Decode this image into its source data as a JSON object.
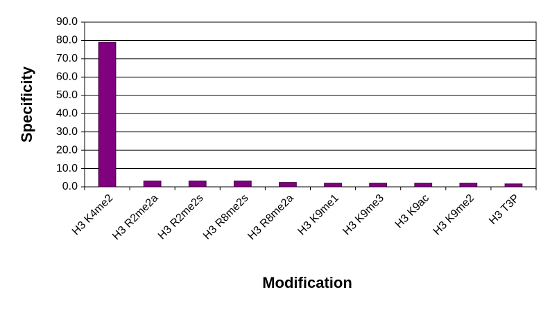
{
  "chart_data": {
    "type": "bar",
    "x_label": "Modification",
    "y_label": "Specificity",
    "categories": [
      "H3 K4me2",
      "H3 R2me2a",
      "H3 R2me2s",
      "H3 R8me2s",
      "H3 R8me2a",
      "H3 K9me1",
      "H3 K9me3",
      "H3 K9ac",
      "H3 K9me2",
      "H3 T3P"
    ],
    "values": [
      79.0,
      3.2,
      3.2,
      3.2,
      2.4,
      2.0,
      2.0,
      2.0,
      2.0,
      1.6
    ],
    "color": "#800080",
    "ylim": [
      0,
      90
    ],
    "yticks": [
      {
        "value": 0,
        "label": "0.0"
      },
      {
        "value": 10,
        "label": "10.0"
      },
      {
        "value": 20,
        "label": "20.0"
      },
      {
        "value": 30,
        "label": "30.0"
      },
      {
        "value": 40,
        "label": "40.0"
      },
      {
        "value": 50,
        "label": "50.0"
      },
      {
        "value": 60,
        "label": "60.0"
      },
      {
        "value": 70,
        "label": "70.0"
      },
      {
        "value": 80,
        "label": "80.0"
      },
      {
        "value": 90,
        "label": "90.0"
      }
    ],
    "grid": true
  }
}
